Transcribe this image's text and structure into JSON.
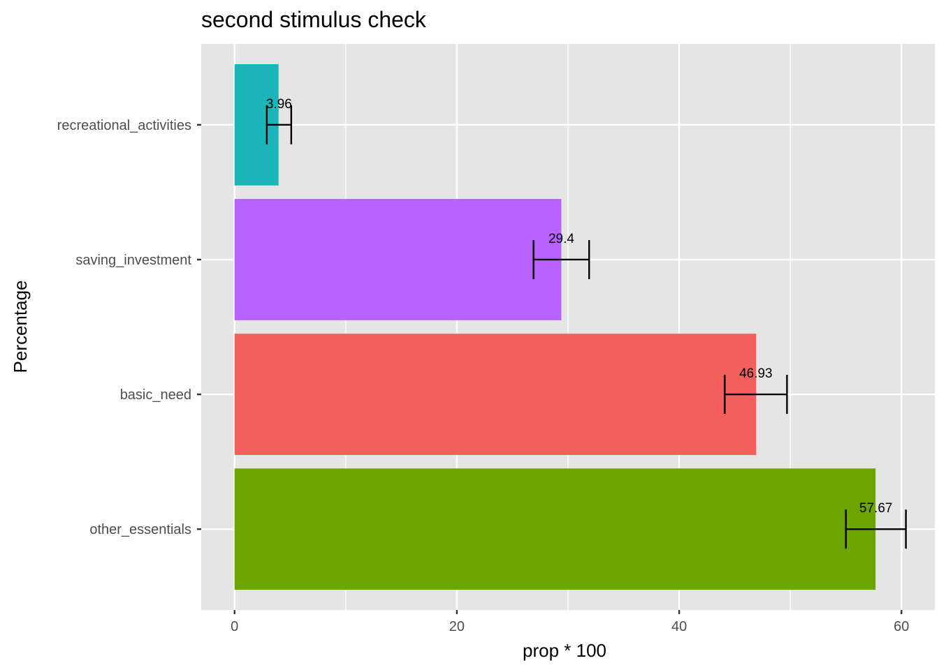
{
  "chart_data": {
    "type": "bar",
    "orientation": "horizontal",
    "title": "second stimulus check",
    "xlabel": "prop * 100",
    "ylabel": "Percentage",
    "xlim": [
      -3,
      63
    ],
    "x_ticks": [
      0,
      20,
      40,
      60
    ],
    "grid": true,
    "legend": "none",
    "categories": [
      "recreational_activities",
      "saving_investment",
      "basic_need",
      "other_essentials"
    ],
    "values": [
      3.96,
      29.4,
      46.93,
      57.67
    ],
    "data_labels": [
      "3.96",
      "29.4",
      "46.93",
      "57.67"
    ],
    "error_bars": [
      {
        "low": 2.9,
        "high": 5.1
      },
      {
        "low": 26.9,
        "high": 31.9
      },
      {
        "low": 44.1,
        "high": 49.7
      },
      {
        "low": 55.0,
        "high": 60.4
      }
    ],
    "colors": [
      "#1bb5b9",
      "#b862ff",
      "#f3605b",
      "#6ca500"
    ]
  },
  "style": {
    "panel_bg": "#e5e5e5",
    "grid_color": "#ffffff",
    "tick_color": "#333333"
  }
}
